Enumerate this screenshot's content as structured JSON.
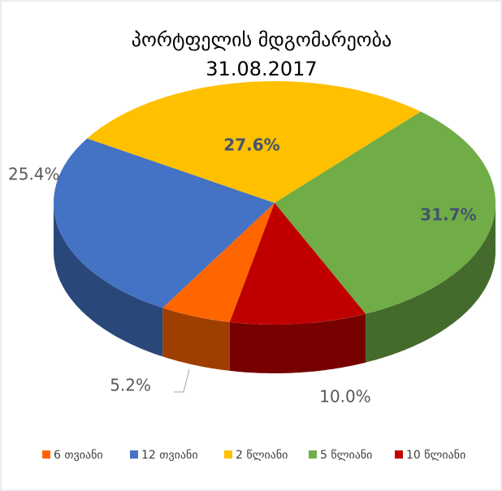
{
  "chart_data": {
    "type": "pie3d",
    "title": "პორტფელის მდგომარეობა",
    "subtitle": "31.08.2017",
    "categories": [
      "6 თვიანი",
      "12 თვიანი",
      "2 წლიანი",
      "5 წლიანი",
      "10 წლიანი"
    ],
    "values": [
      5.2,
      25.4,
      27.6,
      31.7,
      10.0
    ],
    "value_labels": [
      "5.2%",
      "25.4%",
      "27.6%",
      "31.7%",
      "10.0%"
    ],
    "colors": [
      "#ff6600",
      "#4472c4",
      "#ffc000",
      "#70ad47",
      "#c00000"
    ],
    "legend": "bottom"
  }
}
